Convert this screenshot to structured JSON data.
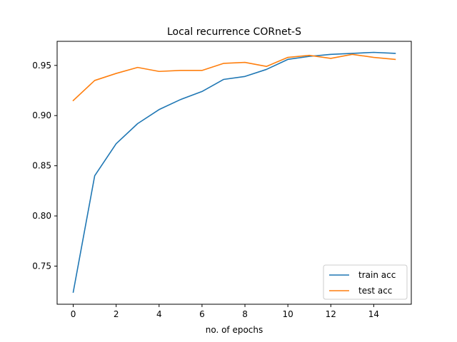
{
  "chart_data": {
    "type": "line",
    "title": "Local recurrence CORnet-S",
    "xlabel": "no. of epochs",
    "ylabel": "",
    "xlim": [
      -0.75,
      15.75
    ],
    "ylim": [
      0.712,
      0.974
    ],
    "xticks": [
      0,
      2,
      4,
      6,
      8,
      10,
      12,
      14
    ],
    "yticks": [
      0.75,
      0.8,
      0.85,
      0.9,
      0.95
    ],
    "xtick_labels": [
      "0",
      "2",
      "4",
      "6",
      "8",
      "10",
      "12",
      "14"
    ],
    "ytick_labels": [
      "0.75",
      "0.80",
      "0.85",
      "0.90",
      "0.95"
    ],
    "grid": false,
    "legend_position": "lower-right",
    "x": [
      0,
      1,
      2,
      3,
      4,
      5,
      6,
      7,
      8,
      9,
      10,
      11,
      12,
      13,
      14,
      15
    ],
    "series": [
      {
        "name": "train acc",
        "color": "#1f77b4",
        "values": [
          0.724,
          0.84,
          0.872,
          0.892,
          0.906,
          0.916,
          0.924,
          0.936,
          0.939,
          0.946,
          0.956,
          0.959,
          0.961,
          0.962,
          0.963,
          0.962
        ]
      },
      {
        "name": "test acc",
        "color": "#ff7f0e",
        "values": [
          0.915,
          0.935,
          0.942,
          0.948,
          0.944,
          0.945,
          0.945,
          0.952,
          0.953,
          0.949,
          0.958,
          0.96,
          0.957,
          0.961,
          0.958,
          0.956
        ]
      }
    ]
  }
}
